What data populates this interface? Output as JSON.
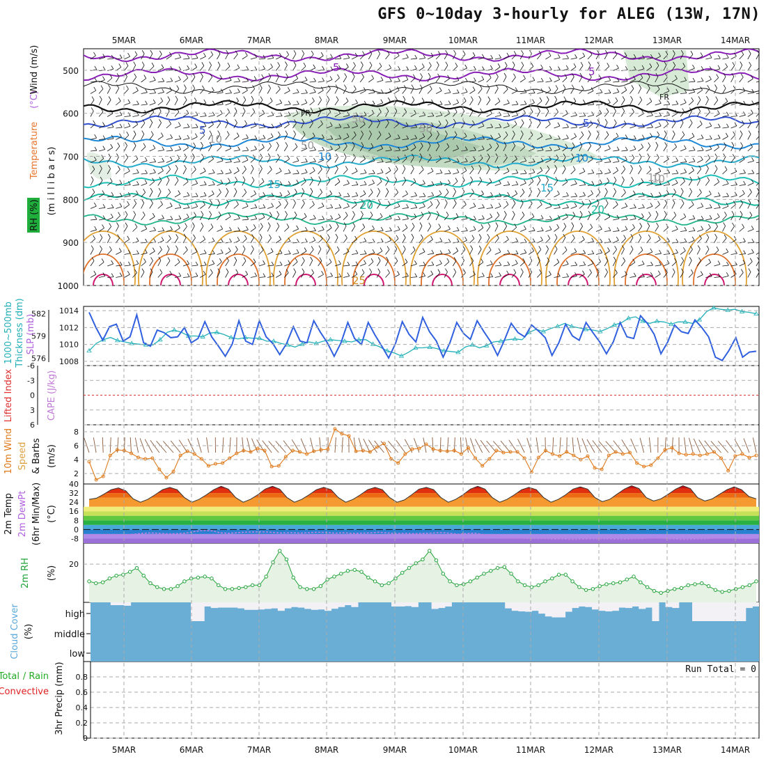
{
  "title": "GFS 0~10day 3-hourly for ALEG (13W, 17N)",
  "colors": {
    "temperature": "#e8742a",
    "wind": "#111111",
    "rh": "#1fae3c",
    "thickness": "#22b0b8",
    "slp": "#3060e0",
    "lifted": "#e03030",
    "cape": "#c07ad8",
    "wind10": "#e07a1a",
    "speed": "#e0a040",
    "dew": "#b060e0",
    "rh2m": "#22a33a",
    "cloud": "#5aa8d8",
    "total": "#22aa22",
    "convective": "#e02020",
    "cloudfill": "#6aaed6"
  },
  "chart_data": [
    {
      "type": "heatmap",
      "panel": "upper-air",
      "x_dates": [
        "5MAR",
        "6MAR",
        "7MAR",
        "8MAR",
        "9MAR",
        "10MAR",
        "11MAR",
        "12MAR",
        "13MAR",
        "14MAR"
      ],
      "ylabel_parts": {
        "temperature": "Temperature",
        "temp_unit": "(°C)",
        "wind": "Wind (m/s)",
        "rh": "RH (%)",
        "mb": "(m i l l i b a r s)"
      },
      "yticks": [
        500,
        600,
        700,
        800,
        900,
        1000
      ],
      "ylim": [
        450,
        1000
      ],
      "contour_labels": [
        "5",
        "5",
        "FR",
        "FR",
        "5",
        "5",
        "10",
        "10",
        "15",
        "15",
        "20",
        "20",
        "25",
        "10",
        "50",
        "50",
        "50",
        "10",
        "10"
      ]
    },
    {
      "type": "line",
      "panel": "slp-thickness",
      "ylabel_parts": {
        "thickness": "1000~500mb",
        "thickness2": "Thickness (dm)",
        "slp": "SLP (mb)"
      },
      "left_ticks": [
        "582",
        "579",
        "576"
      ],
      "right_ticks": [
        "1014",
        "1012",
        "1010",
        "1008"
      ],
      "thickness_lim": [
        575,
        583
      ],
      "slp_lim": [
        1007.5,
        1014.5
      ],
      "slp": [
        1013.8,
        1012,
        1010.5,
        1012.1,
        1012.4,
        1010.4,
        1010.9,
        1013.5,
        1010.2,
        1009.8,
        1011.7,
        1011.4,
        1010.8,
        1010.9,
        1012,
        1010.2,
        1010.7,
        1012.7,
        1010.9,
        1009.8,
        1008.6,
        1010,
        1012.8,
        1010.4,
        1010,
        1012.8,
        1010.9,
        1010.1,
        1008.8,
        1010.1,
        1012.1,
        1010.4,
        1010.2,
        1012.8,
        1011.4,
        1010.2,
        1008.6,
        1010.2,
        1012.6,
        1010.7,
        1010,
        1012.6,
        1011.1,
        1009.8,
        1008.4,
        1010.1,
        1012.7,
        1011.2,
        1010.3,
        1013.2,
        1011.5,
        1010.4,
        1008.5,
        1010.2,
        1012.6,
        1011.3,
        1010.6,
        1012.8,
        1011.5,
        1010.3,
        1008.7,
        1010.5,
        1012.5,
        1011.4,
        1010.9,
        1012.3,
        1011.6,
        1010.8,
        1008.7,
        1010.2,
        1012.4,
        1011,
        1010.5,
        1012.6,
        1011.4,
        1010.3,
        1008.9,
        1010.3,
        1012.6,
        1010.9,
        1010.7,
        1013.4,
        1012.5,
        1011.2,
        1008.9,
        1010.3,
        1012.3,
        1011.5,
        1011.3,
        1012.9,
        1012,
        1010.9,
        1008.5,
        1008.1,
        1009.3,
        1010.8,
        1008.5,
        1009.1,
        1009.2
      ],
      "thickness": [
        577,
        578,
        578.5,
        578.8,
        578.4,
        578.2,
        578,
        577.9,
        577.8,
        577.8,
        578.5,
        579.5,
        579.8,
        579.5,
        579,
        579,
        578.9,
        579.4,
        579.5,
        579.2,
        578.8,
        578.6,
        578.8,
        578.7,
        578.7,
        578.3,
        578.3,
        578,
        577.8,
        577.5,
        577.9,
        578.2,
        578,
        578.3,
        578.5,
        578.4,
        578.3,
        578.2,
        578.5,
        578.5,
        577.9,
        577.5,
        577,
        576.7,
        576.3,
        576.8,
        577.4,
        577.4,
        577.5,
        577.3,
        577,
        576.9,
        576.8,
        577.5,
        577.8,
        577.4,
        577.7,
        578.2,
        578.3,
        578.5,
        578.6,
        578.5,
        579.5,
        579.9,
        579.6,
        580,
        580.3,
        580.7,
        580.3,
        580.1,
        579.9,
        579.8,
        579.6,
        580,
        580.5,
        580.8,
        581.4,
        581.6,
        581,
        580.7,
        581,
        580.9,
        580.6,
        580.9,
        580.9,
        580.7,
        581.2,
        582.3,
        582.8,
        582.6,
        582.5,
        582.6,
        582.3,
        582.2,
        582
      ],
      "zero_line": 0
    },
    {
      "type": "line",
      "panel": "stability",
      "ylabel_parts": {
        "lifted": "Lifted Index",
        "cape": "CAPE (J/kg)"
      },
      "yticks": [
        "-6",
        "-3",
        "0",
        "3",
        "6"
      ],
      "ylim": [
        -6,
        6
      ]
    },
    {
      "type": "line",
      "panel": "wind10m",
      "ylabel_parts": {
        "wind": "10m Wind",
        "speed": "Speed",
        "barbs": "& Barbs",
        "unit": "(m/s)"
      },
      "yticks": [
        "2",
        "4",
        "6",
        "8"
      ],
      "ylim": [
        0.5,
        9
      ],
      "speed": [
        3.7,
        1.1,
        1.6,
        4.6,
        5.4,
        5.3,
        4.9,
        4.3,
        4.1,
        4.2,
        2.6,
        1.4,
        2.3,
        4.6,
        5.2,
        4.8,
        4.1,
        3.1,
        3.4,
        3.5,
        4.2,
        4.9,
        5.3,
        5.1,
        5.6,
        5.3,
        3,
        3.1,
        4.4,
        5.3,
        5.1,
        4.8,
        5.2,
        5.4,
        5.5,
        8.4,
        7.7,
        7.4,
        5.2,
        5.3,
        5.1,
        5.8,
        6.3,
        4.1,
        3.5,
        4.8,
        5.5,
        5.6,
        6.2,
        5.5,
        5.3,
        5.2,
        5.3,
        4.8,
        5.7,
        4.2,
        3.1,
        4.1,
        5.3,
        5,
        5.1,
        5.1,
        4.2,
        2.2,
        4.3,
        5.3,
        4.8,
        4.5,
        5.1,
        4.6,
        4,
        4.5,
        2.8,
        2.6,
        4.6,
        5.1,
        4.8,
        5,
        3.5,
        3,
        3.2,
        4.2,
        5.4,
        5.7,
        4.9,
        4.7,
        4.8,
        4.6,
        4.8,
        5.1,
        4.2,
        2.4,
        4.5,
        4.8,
        4.3,
        4.6
      ],
      "zero_line": 0
    },
    {
      "type": "area",
      "panel": "temp2m",
      "ylabel_parts": {
        "temp": "2m Temp",
        "dew": "2m DewPt",
        "minmax": "(6hr Min/Max)",
        "unit": "(°C)"
      },
      "yticks": [
        "40",
        "32",
        "24",
        "16",
        "8",
        "0",
        "-8"
      ],
      "ylim": [
        -12,
        40
      ],
      "temp": [
        26.5,
        27.5,
        31,
        35,
        36.5,
        34,
        27,
        24,
        26.5,
        30.5,
        35,
        37,
        35,
        28,
        24,
        26.5,
        30.5,
        35,
        38,
        35.5,
        28,
        24,
        26.5,
        30.5,
        35.5,
        38,
        35.5,
        28,
        24,
        26.5,
        30.5,
        35,
        37,
        35,
        28,
        24,
        26.5,
        30.5,
        35,
        37,
        35,
        28,
        24,
        26,
        30.5,
        35.5,
        37,
        35,
        28,
        24,
        26.5,
        30.5,
        35.5,
        38,
        35.5,
        28,
        24,
        26.5,
        30.5,
        35,
        37,
        35,
        28,
        24,
        26.5,
        30.5,
        35.5,
        37.5,
        35.5,
        28,
        24.5,
        26.5,
        31,
        35.5,
        38.5,
        36,
        28,
        25,
        27,
        31,
        35.5,
        38.5,
        36,
        28,
        25,
        27,
        31,
        35,
        37.5,
        35,
        29,
        27
      ],
      "dew": [
        -5.5,
        -5,
        -4.5,
        -4.8,
        -4.7,
        -4.2,
        -3.4,
        -3,
        -3.3,
        -3.8,
        -3.6,
        -3.2,
        -1.8,
        -0.8,
        -1.2,
        -3,
        -3.3,
        -2.7,
        -2.3,
        -2.1,
        -2,
        -2.6,
        -3.1,
        -2.8,
        -3.1,
        -2.8,
        -2.4,
        -2.6,
        -3.2,
        -2.9,
        -3.4,
        -3.2,
        -3,
        -2.4,
        -3,
        -3.5,
        -3.3,
        -3.6,
        -3.4,
        -3.2,
        -2.7,
        -3.2,
        -4.1,
        -3.5,
        -3.2,
        -4.6,
        -5.4,
        -6.7,
        -7.7,
        -7.6,
        -8,
        -8.1,
        -8,
        -8.5,
        -8.4,
        -8.7,
        -8.5,
        -8.4,
        -8.2,
        -8.3,
        -8.5,
        -8.6,
        -8.2,
        -8.1,
        -7.6,
        -7.5,
        -8.2,
        -8.5,
        -8.7,
        -8.4,
        -8.3,
        -7.8,
        -7.6,
        -7.5,
        -8.1,
        -7.9,
        -7.7
      ],
      "zero_line": 0
    },
    {
      "type": "line",
      "panel": "rh2m",
      "ylabel_parts": {
        "rh": "2m RH",
        "unit": "(%)"
      },
      "yticks": [
        "20"
      ],
      "ylim": [
        0,
        31
      ],
      "rh": [
        11,
        10,
        10.5,
        12.5,
        14,
        14.5,
        16,
        18,
        14,
        10,
        8,
        7,
        7,
        8.5,
        11,
        12.5,
        13,
        13.5,
        12.5,
        9,
        7,
        7,
        7.5,
        8,
        9,
        9,
        13.5,
        21,
        27,
        22.5,
        13,
        8,
        7,
        7,
        8.5,
        12,
        13.5,
        15,
        16.5,
        17,
        16,
        13,
        11,
        9,
        10,
        12.5,
        15.5,
        18,
        20.5,
        22.5,
        27,
        22,
        15,
        11,
        9,
        9.5,
        11,
        13,
        15,
        16.5,
        18,
        18.5,
        15,
        11,
        9,
        8,
        9,
        11,
        12.5,
        14.5,
        14.5,
        11,
        8,
        6.5,
        7,
        8.5,
        9.5,
        10,
        10.5,
        12,
        13.5,
        10.5,
        8,
        6,
        5,
        6,
        7,
        7.5,
        9,
        9.5,
        10,
        8.5,
        6.5,
        5.5,
        6,
        7,
        8,
        9,
        11
      ],
      "zero_line": 0
    },
    {
      "type": "bar",
      "panel": "cloud",
      "ylabel_parts": {
        "cloud": "Cloud Cover",
        "unit": "(%)"
      },
      "levels": [
        "high",
        "middle",
        "low"
      ],
      "high": [
        1,
        1,
        1,
        0.85,
        0.85,
        0.82,
        1,
        1,
        1,
        1,
        1,
        1,
        1,
        1,
        1,
        0,
        0,
        0.78,
        0.7,
        0.72,
        0.72,
        0.72,
        0.68,
        0.6,
        0.6,
        0.62,
        0.65,
        0.68,
        0.55,
        0.68,
        0.75,
        0.72,
        0.65,
        0.6,
        0.62,
        0.55,
        0.66,
        0.75,
        0.85,
        0.75,
        1,
        1,
        1,
        1,
        1,
        0.78,
        0.78,
        0.8,
        0.75,
        1,
        1,
        0.65,
        0.7,
        0.78,
        1,
        1,
        1,
        1,
        1,
        1,
        1,
        1,
        0.68,
        0.55,
        0.52,
        0.5,
        0.55,
        0.4,
        0.25,
        0.2,
        0.2,
        0.5,
        0.7,
        0.78,
        0.75,
        0.62,
        0.55,
        0.52,
        0.55,
        0.72,
        0.7,
        0.78,
        0.65,
        0.72,
        0,
        1,
        0.75,
        0.7,
        1,
        1,
        0,
        0,
        0,
        0,
        0,
        0,
        0,
        0,
        0.7,
        0.78
      ]
    },
    {
      "type": "bar",
      "panel": "precip",
      "ylabel_parts": {
        "total": "Total",
        "sep": " / Rain",
        "convective": "Convective",
        "precip": "3hr Precip (mm)"
      },
      "yticks": [
        "0",
        "0.2",
        "0.4",
        "0.6",
        "0.8"
      ],
      "ylim": [
        0,
        1
      ],
      "run_total": "Run Total = 0"
    }
  ]
}
